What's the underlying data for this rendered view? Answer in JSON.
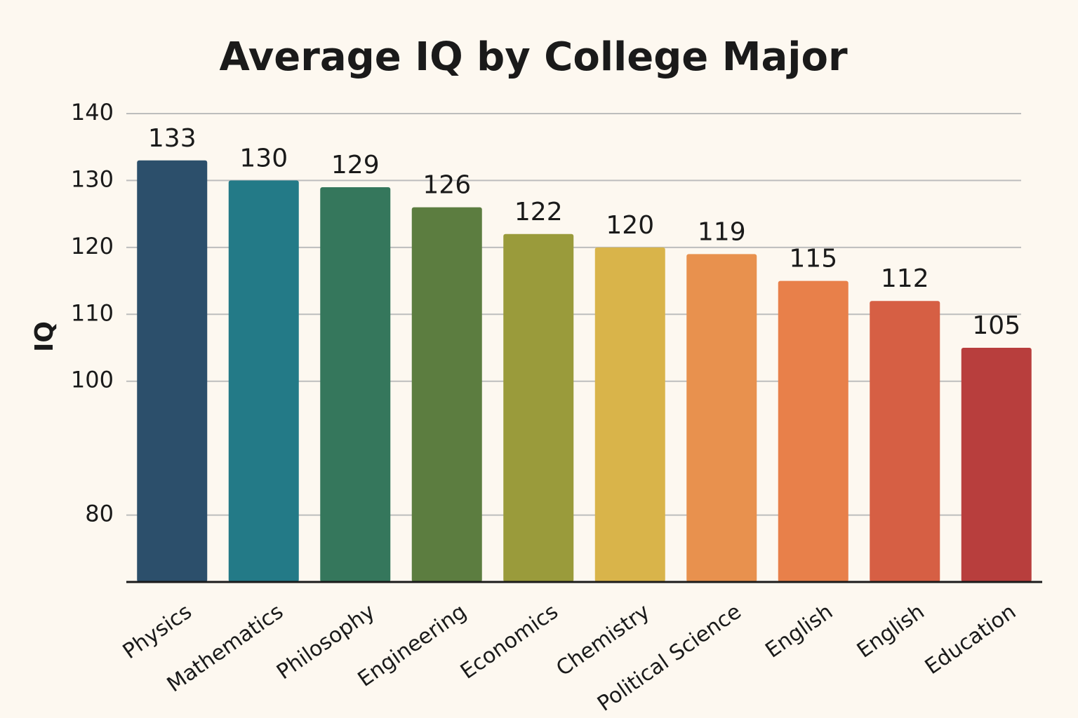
{
  "chart_data": {
    "type": "bar",
    "title": "Average IQ by College Major",
    "y_label": "IQ",
    "categories": [
      "Physics",
      "Mathematics",
      "Philosophy",
      "Engineering",
      "Economics",
      "Chemistry",
      "Political Science",
      "English",
      "English",
      "Education"
    ],
    "values": [
      133,
      130,
      129,
      126,
      122,
      120,
      119,
      115,
      112,
      105
    ],
    "colors": [
      "#2c4f6b",
      "#237a87",
      "#35775c",
      "#5c7d40",
      "#9a9b3b",
      "#d9b44a",
      "#e8914e",
      "#e8804a",
      "#d65f44",
      "#b83e3d"
    ],
    "ylim": [
      70,
      140
    ],
    "yticks": [
      80,
      100,
      110,
      120,
      130,
      140
    ],
    "grid": true
  }
}
